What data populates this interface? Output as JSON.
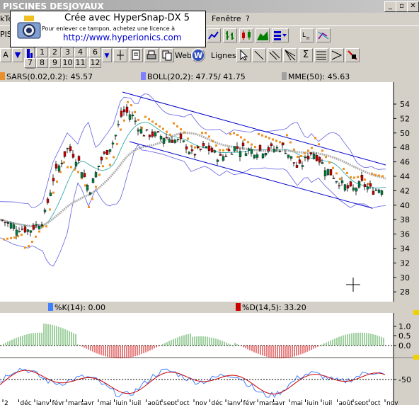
{
  "window": {
    "title": "PISCINES DESJOYAUX"
  },
  "menu": {
    "left_item": "kTe",
    "fenetre": "Fenêtre",
    "help": "?"
  },
  "toolbar": {
    "code_label": "PIS",
    "mode_letter": "A",
    "period_numbers": [
      "1",
      "2",
      "3",
      "4",
      "5",
      "6",
      "7",
      "8",
      "9",
      "10",
      "11",
      "12"
    ],
    "web_label": "Web",
    "lignes_label": "Lignes"
  },
  "watermark": {
    "line1": "Crée avec HyperSnap-DX 5",
    "line2": "Pour enlever ce tampon, achetez une licence à",
    "line3": "http://www.hyperionics.com"
  },
  "legend": {
    "sars": "SARS(0.02,0.2): 45.57",
    "boll": "BOLL(20,2): 47.75/ 41.75",
    "mme": "MME(50): 45.63",
    "sars_color": "#e89030",
    "boll_color": "#8080ff",
    "mme_color": "#a0a0a0"
  },
  "price_axis": {
    "ticks": [
      "54",
      "52",
      "50",
      "48",
      "46",
      "44",
      "42",
      "40",
      "38",
      "36",
      "34",
      "32",
      "30",
      "28"
    ]
  },
  "stoch_legend": {
    "k": "%K(14): 0.00",
    "d": "%D(14,5): 33.20",
    "k_color": "#4080ff",
    "d_color": "#cc0000"
  },
  "osc_axis": {
    "ticks": [
      "1.0",
      "0.5",
      "0.0"
    ]
  },
  "stoch_axis": {
    "ticks": [
      "-50"
    ]
  },
  "date_axis": {
    "labels": [
      "2",
      "déc",
      "janv",
      "févr",
      "mars",
      "avr",
      "mai",
      "juin",
      "juil",
      "août",
      "sept",
      "oct",
      "nov",
      "déc",
      "janv",
      "févr",
      "mars",
      "avr",
      "mai",
      "juin",
      "juil",
      "août",
      "sept",
      "oct",
      "nov"
    ]
  }
}
